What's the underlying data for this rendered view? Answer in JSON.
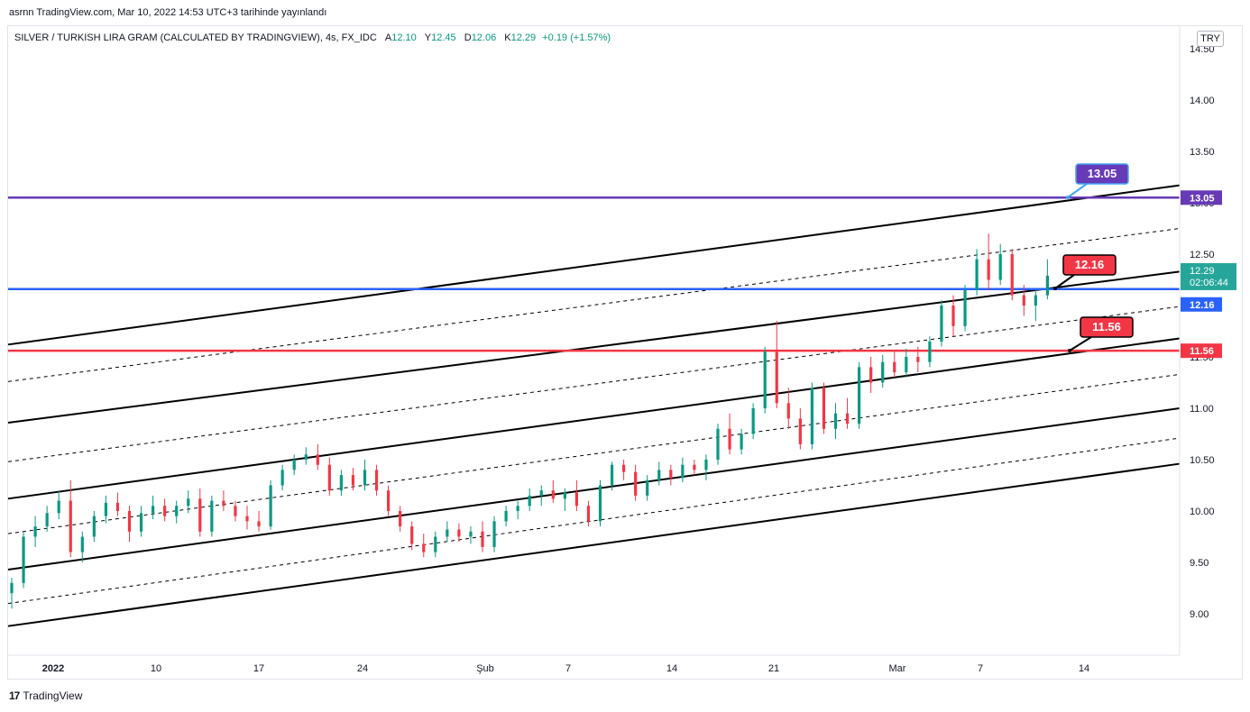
{
  "header": {
    "published_line": "asrnn TradingView.com, Mar 10, 2022 14:53 UTC+3 tarihinde yayınlandı"
  },
  "symbol": {
    "name": "SILVER / TURKISH LIRA GRAM (CALCULATED BY TRADINGVIEW), 4s, FX_IDC",
    "open_label": "A",
    "open": "12.10",
    "high_label": "Y",
    "high": "12.45",
    "low_label": "D",
    "low": "12.06",
    "close_label": "K",
    "close": "12.29",
    "change": "+0.19 (+1.57%)"
  },
  "currency": "TRY",
  "footer": {
    "brand": "TradingView",
    "logo": "17"
  },
  "colors": {
    "up": "#089981",
    "down": "#f23645",
    "purple": "#673ab7",
    "blue": "#2962ff",
    "red": "#f23645",
    "current": "#26a69a"
  },
  "chart_data": {
    "type": "candlestick",
    "y_axis": {
      "ticks": [
        9.0,
        9.5,
        10.0,
        10.5,
        11.0,
        11.5,
        12.0,
        12.5,
        13.0,
        13.5,
        14.0,
        14.5
      ],
      "tick_labels": [
        "9.00",
        "9.50",
        "10.00",
        "10.50",
        "11.00",
        "11.50",
        "12.00",
        "12.50",
        "13.00",
        "13.50",
        "14.00",
        "14.50"
      ]
    },
    "x_axis": {
      "tick_labels": [
        "2022",
        "10",
        "17",
        "24",
        "Şub",
        "7",
        "14",
        "21",
        "Mar",
        "7",
        "14"
      ]
    },
    "horizontal_lines": [
      {
        "name": "resistance",
        "value": 13.05,
        "label": "13.05",
        "color": "#673ab7"
      },
      {
        "name": "support-1",
        "value": 12.16,
        "label": "12.16",
        "color": "#2962ff"
      },
      {
        "name": "support-2",
        "value": 11.56,
        "label": "11.56",
        "color": "#f23645"
      }
    ],
    "callouts": [
      {
        "label": "13.05",
        "color": "#673ab7"
      },
      {
        "label": "12.16",
        "color": "#f23645"
      },
      {
        "label": "11.56",
        "color": "#f23645"
      }
    ],
    "channel": {
      "solid_lines_start": [
        11.62,
        10.86,
        10.12,
        9.43,
        8.88
      ],
      "dashed_lines_start": [
        11.26,
        10.48,
        9.78,
        9.1
      ],
      "solid_lines_end": [
        13.17,
        12.33,
        11.68,
        11.0,
        10.46
      ],
      "dashed_lines_end": [
        12.75,
        11.99,
        11.33,
        10.71
      ]
    },
    "price_now": {
      "value": 12.29,
      "label": "12.29",
      "countdown": "02:06:44"
    },
    "candles": [
      {
        "x": 0,
        "o": 9.2,
        "h": 9.35,
        "l": 9.05,
        "c": 9.3
      },
      {
        "x": 3,
        "o": 9.3,
        "h": 9.8,
        "l": 9.25,
        "c": 9.75
      },
      {
        "x": 6,
        "o": 9.75,
        "h": 9.95,
        "l": 9.65,
        "c": 9.85
      },
      {
        "x": 9,
        "o": 9.85,
        "h": 10.05,
        "l": 9.8,
        "c": 9.98
      },
      {
        "x": 12,
        "o": 9.98,
        "h": 10.2,
        "l": 9.92,
        "c": 10.1
      },
      {
        "x": 15,
        "o": 10.1,
        "h": 10.3,
        "l": 9.55,
        "c": 9.6
      },
      {
        "x": 18,
        "o": 9.6,
        "h": 9.8,
        "l": 9.5,
        "c": 9.75
      },
      {
        "x": 21,
        "o": 9.75,
        "h": 10.0,
        "l": 9.7,
        "c": 9.95
      },
      {
        "x": 24,
        "o": 9.95,
        "h": 10.15,
        "l": 9.88,
        "c": 10.08
      },
      {
        "x": 27,
        "o": 10.08,
        "h": 10.18,
        "l": 9.95,
        "c": 10.0
      },
      {
        "x": 30,
        "o": 10.0,
        "h": 10.05,
        "l": 9.7,
        "c": 9.8
      },
      {
        "x": 33,
        "o": 9.8,
        "h": 10.05,
        "l": 9.75,
        "c": 9.98
      },
      {
        "x": 36,
        "o": 9.98,
        "h": 10.15,
        "l": 9.92,
        "c": 10.05
      },
      {
        "x": 39,
        "o": 10.05,
        "h": 10.12,
        "l": 9.9,
        "c": 9.95
      },
      {
        "x": 42,
        "o": 9.95,
        "h": 10.1,
        "l": 9.88,
        "c": 10.05
      },
      {
        "x": 45,
        "o": 10.05,
        "h": 10.2,
        "l": 9.98,
        "c": 10.12
      },
      {
        "x": 48,
        "o": 10.12,
        "h": 10.22,
        "l": 9.75,
        "c": 9.8
      },
      {
        "x": 51,
        "o": 9.8,
        "h": 10.15,
        "l": 9.75,
        "c": 10.1
      },
      {
        "x": 54,
        "o": 10.1,
        "h": 10.2,
        "l": 10.0,
        "c": 10.05
      },
      {
        "x": 57,
        "o": 10.05,
        "h": 10.1,
        "l": 9.9,
        "c": 9.95
      },
      {
        "x": 60,
        "o": 9.95,
        "h": 10.05,
        "l": 9.82,
        "c": 9.9
      },
      {
        "x": 63,
        "o": 9.9,
        "h": 10.0,
        "l": 9.8,
        "c": 9.85
      },
      {
        "x": 66,
        "o": 9.85,
        "h": 10.3,
        "l": 9.82,
        "c": 10.25
      },
      {
        "x": 69,
        "o": 10.25,
        "h": 10.45,
        "l": 10.2,
        "c": 10.4
      },
      {
        "x": 72,
        "o": 10.4,
        "h": 10.55,
        "l": 10.35,
        "c": 10.5
      },
      {
        "x": 75,
        "o": 10.5,
        "h": 10.62,
        "l": 10.45,
        "c": 10.55
      },
      {
        "x": 78,
        "o": 10.55,
        "h": 10.65,
        "l": 10.4,
        "c": 10.45
      },
      {
        "x": 81,
        "o": 10.45,
        "h": 10.52,
        "l": 10.15,
        "c": 10.2
      },
      {
        "x": 84,
        "o": 10.2,
        "h": 10.4,
        "l": 10.15,
        "c": 10.35
      },
      {
        "x": 87,
        "o": 10.35,
        "h": 10.42,
        "l": 10.2,
        "c": 10.25
      },
      {
        "x": 90,
        "o": 10.25,
        "h": 10.5,
        "l": 10.2,
        "c": 10.4
      },
      {
        "x": 93,
        "o": 10.4,
        "h": 10.45,
        "l": 10.15,
        "c": 10.2
      },
      {
        "x": 96,
        "o": 10.2,
        "h": 10.25,
        "l": 9.95,
        "c": 10.0
      },
      {
        "x": 99,
        "o": 10.0,
        "h": 10.05,
        "l": 9.8,
        "c": 9.85
      },
      {
        "x": 102,
        "o": 9.85,
        "h": 9.9,
        "l": 9.62,
        "c": 9.68
      },
      {
        "x": 105,
        "o": 9.68,
        "h": 9.78,
        "l": 9.55,
        "c": 9.6
      },
      {
        "x": 108,
        "o": 9.6,
        "h": 9.8,
        "l": 9.55,
        "c": 9.75
      },
      {
        "x": 111,
        "o": 9.75,
        "h": 9.9,
        "l": 9.7,
        "c": 9.82
      },
      {
        "x": 114,
        "o": 9.82,
        "h": 9.88,
        "l": 9.7,
        "c": 9.75
      },
      {
        "x": 117,
        "o": 9.75,
        "h": 9.85,
        "l": 9.68,
        "c": 9.8
      },
      {
        "x": 120,
        "o": 9.8,
        "h": 9.9,
        "l": 9.6,
        "c": 9.65
      },
      {
        "x": 123,
        "o": 9.65,
        "h": 9.95,
        "l": 9.6,
        "c": 9.9
      },
      {
        "x": 126,
        "o": 9.9,
        "h": 10.05,
        "l": 9.85,
        "c": 10.0
      },
      {
        "x": 129,
        "o": 10.0,
        "h": 10.1,
        "l": 9.92,
        "c": 10.05
      },
      {
        "x": 132,
        "o": 10.05,
        "h": 10.22,
        "l": 10.0,
        "c": 10.15
      },
      {
        "x": 135,
        "o": 10.15,
        "h": 10.25,
        "l": 10.05,
        "c": 10.2
      },
      {
        "x": 138,
        "o": 10.2,
        "h": 10.3,
        "l": 10.08,
        "c": 10.12
      },
      {
        "x": 141,
        "o": 10.12,
        "h": 10.22,
        "l": 10.0,
        "c": 10.18
      },
      {
        "x": 144,
        "o": 10.18,
        "h": 10.3,
        "l": 10.0,
        "c": 10.05
      },
      {
        "x": 147,
        "o": 10.05,
        "h": 10.1,
        "l": 9.85,
        "c": 9.9
      },
      {
        "x": 150,
        "o": 9.9,
        "h": 10.3,
        "l": 9.85,
        "c": 10.25
      },
      {
        "x": 153,
        "o": 10.25,
        "h": 10.48,
        "l": 10.2,
        "c": 10.45
      },
      {
        "x": 156,
        "o": 10.45,
        "h": 10.5,
        "l": 10.3,
        "c": 10.38
      },
      {
        "x": 159,
        "o": 10.38,
        "h": 10.45,
        "l": 10.1,
        "c": 10.15
      },
      {
        "x": 162,
        "o": 10.15,
        "h": 10.35,
        "l": 10.1,
        "c": 10.3
      },
      {
        "x": 165,
        "o": 10.3,
        "h": 10.48,
        "l": 10.25,
        "c": 10.4
      },
      {
        "x": 168,
        "o": 10.4,
        "h": 10.45,
        "l": 10.25,
        "c": 10.32
      },
      {
        "x": 171,
        "o": 10.32,
        "h": 10.52,
        "l": 10.28,
        "c": 10.45
      },
      {
        "x": 174,
        "o": 10.45,
        "h": 10.5,
        "l": 10.35,
        "c": 10.4
      },
      {
        "x": 177,
        "o": 10.4,
        "h": 10.55,
        "l": 10.3,
        "c": 10.5
      },
      {
        "x": 180,
        "o": 10.5,
        "h": 10.85,
        "l": 10.45,
        "c": 10.8
      },
      {
        "x": 183,
        "o": 10.8,
        "h": 10.95,
        "l": 10.55,
        "c": 10.6
      },
      {
        "x": 186,
        "o": 10.6,
        "h": 10.8,
        "l": 10.55,
        "c": 10.75
      },
      {
        "x": 189,
        "o": 10.75,
        "h": 11.05,
        "l": 10.7,
        "c": 11.0
      },
      {
        "x": 192,
        "o": 11.0,
        "h": 11.6,
        "l": 10.95,
        "c": 11.55
      },
      {
        "x": 195,
        "o": 11.55,
        "h": 11.85,
        "l": 11.0,
        "c": 11.05
      },
      {
        "x": 198,
        "o": 11.05,
        "h": 11.2,
        "l": 10.8,
        "c": 10.9
      },
      {
        "x": 201,
        "o": 10.9,
        "h": 11.0,
        "l": 10.6,
        "c": 10.65
      },
      {
        "x": 204,
        "o": 10.65,
        "h": 11.25,
        "l": 10.6,
        "c": 11.2
      },
      {
        "x": 207,
        "o": 11.2,
        "h": 11.25,
        "l": 10.75,
        "c": 10.8
      },
      {
        "x": 210,
        "o": 10.8,
        "h": 11.05,
        "l": 10.7,
        "c": 10.95
      },
      {
        "x": 213,
        "o": 10.95,
        "h": 11.1,
        "l": 10.8,
        "c": 10.85
      },
      {
        "x": 216,
        "o": 10.85,
        "h": 11.45,
        "l": 10.8,
        "c": 11.4
      },
      {
        "x": 219,
        "o": 11.4,
        "h": 11.5,
        "l": 11.15,
        "c": 11.25
      },
      {
        "x": 222,
        "o": 11.25,
        "h": 11.52,
        "l": 11.2,
        "c": 11.45
      },
      {
        "x": 225,
        "o": 11.45,
        "h": 11.55,
        "l": 11.3,
        "c": 11.35
      },
      {
        "x": 228,
        "o": 11.35,
        "h": 11.58,
        "l": 11.3,
        "c": 11.5
      },
      {
        "x": 231,
        "o": 11.5,
        "h": 11.6,
        "l": 11.35,
        "c": 11.45
      },
      {
        "x": 234,
        "o": 11.45,
        "h": 11.7,
        "l": 11.4,
        "c": 11.65
      },
      {
        "x": 237,
        "o": 11.65,
        "h": 12.05,
        "l": 11.6,
        "c": 12.0
      },
      {
        "x": 240,
        "o": 12.0,
        "h": 12.1,
        "l": 11.7,
        "c": 11.8
      },
      {
        "x": 243,
        "o": 11.8,
        "h": 12.2,
        "l": 11.75,
        "c": 12.15
      },
      {
        "x": 246,
        "o": 12.15,
        "h": 12.55,
        "l": 12.1,
        "c": 12.45
      },
      {
        "x": 249,
        "o": 12.45,
        "h": 12.7,
        "l": 12.15,
        "c": 12.25
      },
      {
        "x": 252,
        "o": 12.25,
        "h": 12.6,
        "l": 12.2,
        "c": 12.5
      },
      {
        "x": 255,
        "o": 12.5,
        "h": 12.55,
        "l": 12.05,
        "c": 12.1
      },
      {
        "x": 258,
        "o": 12.1,
        "h": 12.2,
        "l": 11.9,
        "c": 12.0
      },
      {
        "x": 261,
        "o": 12.0,
        "h": 12.15,
        "l": 11.85,
        "c": 12.1
      },
      {
        "x": 264,
        "o": 12.1,
        "h": 12.45,
        "l": 12.06,
        "c": 12.29
      }
    ]
  }
}
